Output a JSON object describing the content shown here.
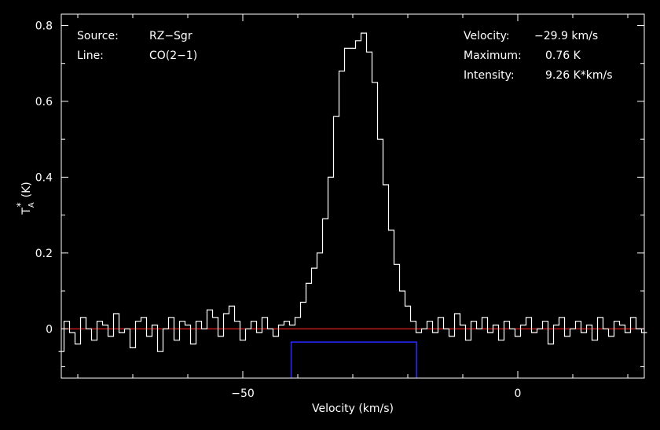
{
  "chart_data": {
    "type": "line",
    "xlabel": "Velocity (km/s)",
    "ylabel_main": "T",
    "ylabel_sub": "A",
    "ylabel_sup": "*",
    "ylabel_unit": "(K)",
    "xlim": [
      -83,
      23
    ],
    "ylim": [
      -0.13,
      0.83
    ],
    "xticks": [
      -50,
      0
    ],
    "xtick_labels": [
      "−50",
      "0"
    ],
    "yticks": [
      0,
      0.2,
      0.4,
      0.6,
      0.8
    ],
    "ytick_labels": [
      "0",
      "0.2",
      "0.4",
      "0.6",
      "0.8"
    ],
    "baseline": 0,
    "window": {
      "x0": -41.2,
      "x1": -18.4,
      "y": -0.035
    },
    "annotations_left": [
      {
        "label": "Source:",
        "value": "RZ−Sgr"
      },
      {
        "label": "Line:",
        "value": "CO(2−1)"
      }
    ],
    "annotations_right": [
      {
        "label": "Velocity:",
        "value": "−29.9 km/s"
      },
      {
        "label": "Maximum:",
        "value": "0.76 K"
      },
      {
        "label": "Intensity:",
        "value": "9.26 K*km/s"
      }
    ],
    "series": [
      {
        "x": [
          -83,
          -82,
          -81,
          -80,
          -79,
          -78,
          -77,
          -76,
          -75,
          -74,
          -73,
          -72,
          -71,
          -70,
          -69,
          -68,
          -67,
          -66,
          -65,
          -64,
          -63,
          -62,
          -61,
          -60,
          -59,
          -58,
          -57,
          -56,
          -55,
          -54,
          -53,
          -52,
          -51,
          -50,
          -49,
          -48,
          -47,
          -46,
          -45,
          -44,
          -43,
          -42,
          -41,
          -40,
          -39,
          -38,
          -37,
          -36,
          -35,
          -34,
          -33,
          -32,
          -31,
          -30,
          -29,
          -28,
          -27,
          -26,
          -25,
          -24,
          -23,
          -22,
          -21,
          -20,
          -19,
          -18,
          -17,
          -16,
          -15,
          -14,
          -13,
          -12,
          -11,
          -10,
          -9,
          -8,
          -7,
          -6,
          -5,
          -4,
          -3,
          -2,
          -1,
          0,
          1,
          2,
          3,
          4,
          5,
          6,
          7,
          8,
          9,
          10,
          11,
          12,
          13,
          14,
          15,
          16,
          17,
          18,
          19,
          20,
          21,
          22,
          23
        ],
        "y": [
          -0.06,
          0.02,
          -0.01,
          -0.04,
          0.03,
          0.0,
          -0.03,
          0.02,
          0.01,
          -0.02,
          0.04,
          -0.01,
          0.0,
          -0.05,
          0.02,
          0.03,
          -0.02,
          0.01,
          -0.06,
          0.0,
          0.03,
          -0.03,
          0.02,
          0.01,
          -0.04,
          0.02,
          0.0,
          0.05,
          0.03,
          -0.02,
          0.04,
          0.06,
          0.02,
          -0.03,
          0.0,
          0.02,
          -0.01,
          0.03,
          0.0,
          -0.02,
          0.01,
          0.02,
          0.01,
          0.03,
          0.07,
          0.12,
          0.16,
          0.2,
          0.29,
          0.4,
          0.56,
          0.68,
          0.74,
          0.74,
          0.76,
          0.78,
          0.73,
          0.65,
          0.5,
          0.38,
          0.26,
          0.17,
          0.1,
          0.06,
          0.02,
          -0.01,
          0.0,
          0.02,
          -0.01,
          0.03,
          0.0,
          -0.02,
          0.04,
          0.01,
          -0.03,
          0.02,
          0.0,
          0.03,
          -0.01,
          0.01,
          -0.03,
          0.02,
          0.0,
          -0.02,
          0.01,
          0.03,
          -0.01,
          0.0,
          0.02,
          -0.04,
          0.01,
          0.03,
          -0.02,
          0.0,
          0.02,
          -0.01,
          0.01,
          -0.03,
          0.03,
          0.0,
          -0.02,
          0.02,
          0.01,
          -0.01,
          0.03,
          0.0,
          -0.01
        ]
      }
    ]
  }
}
